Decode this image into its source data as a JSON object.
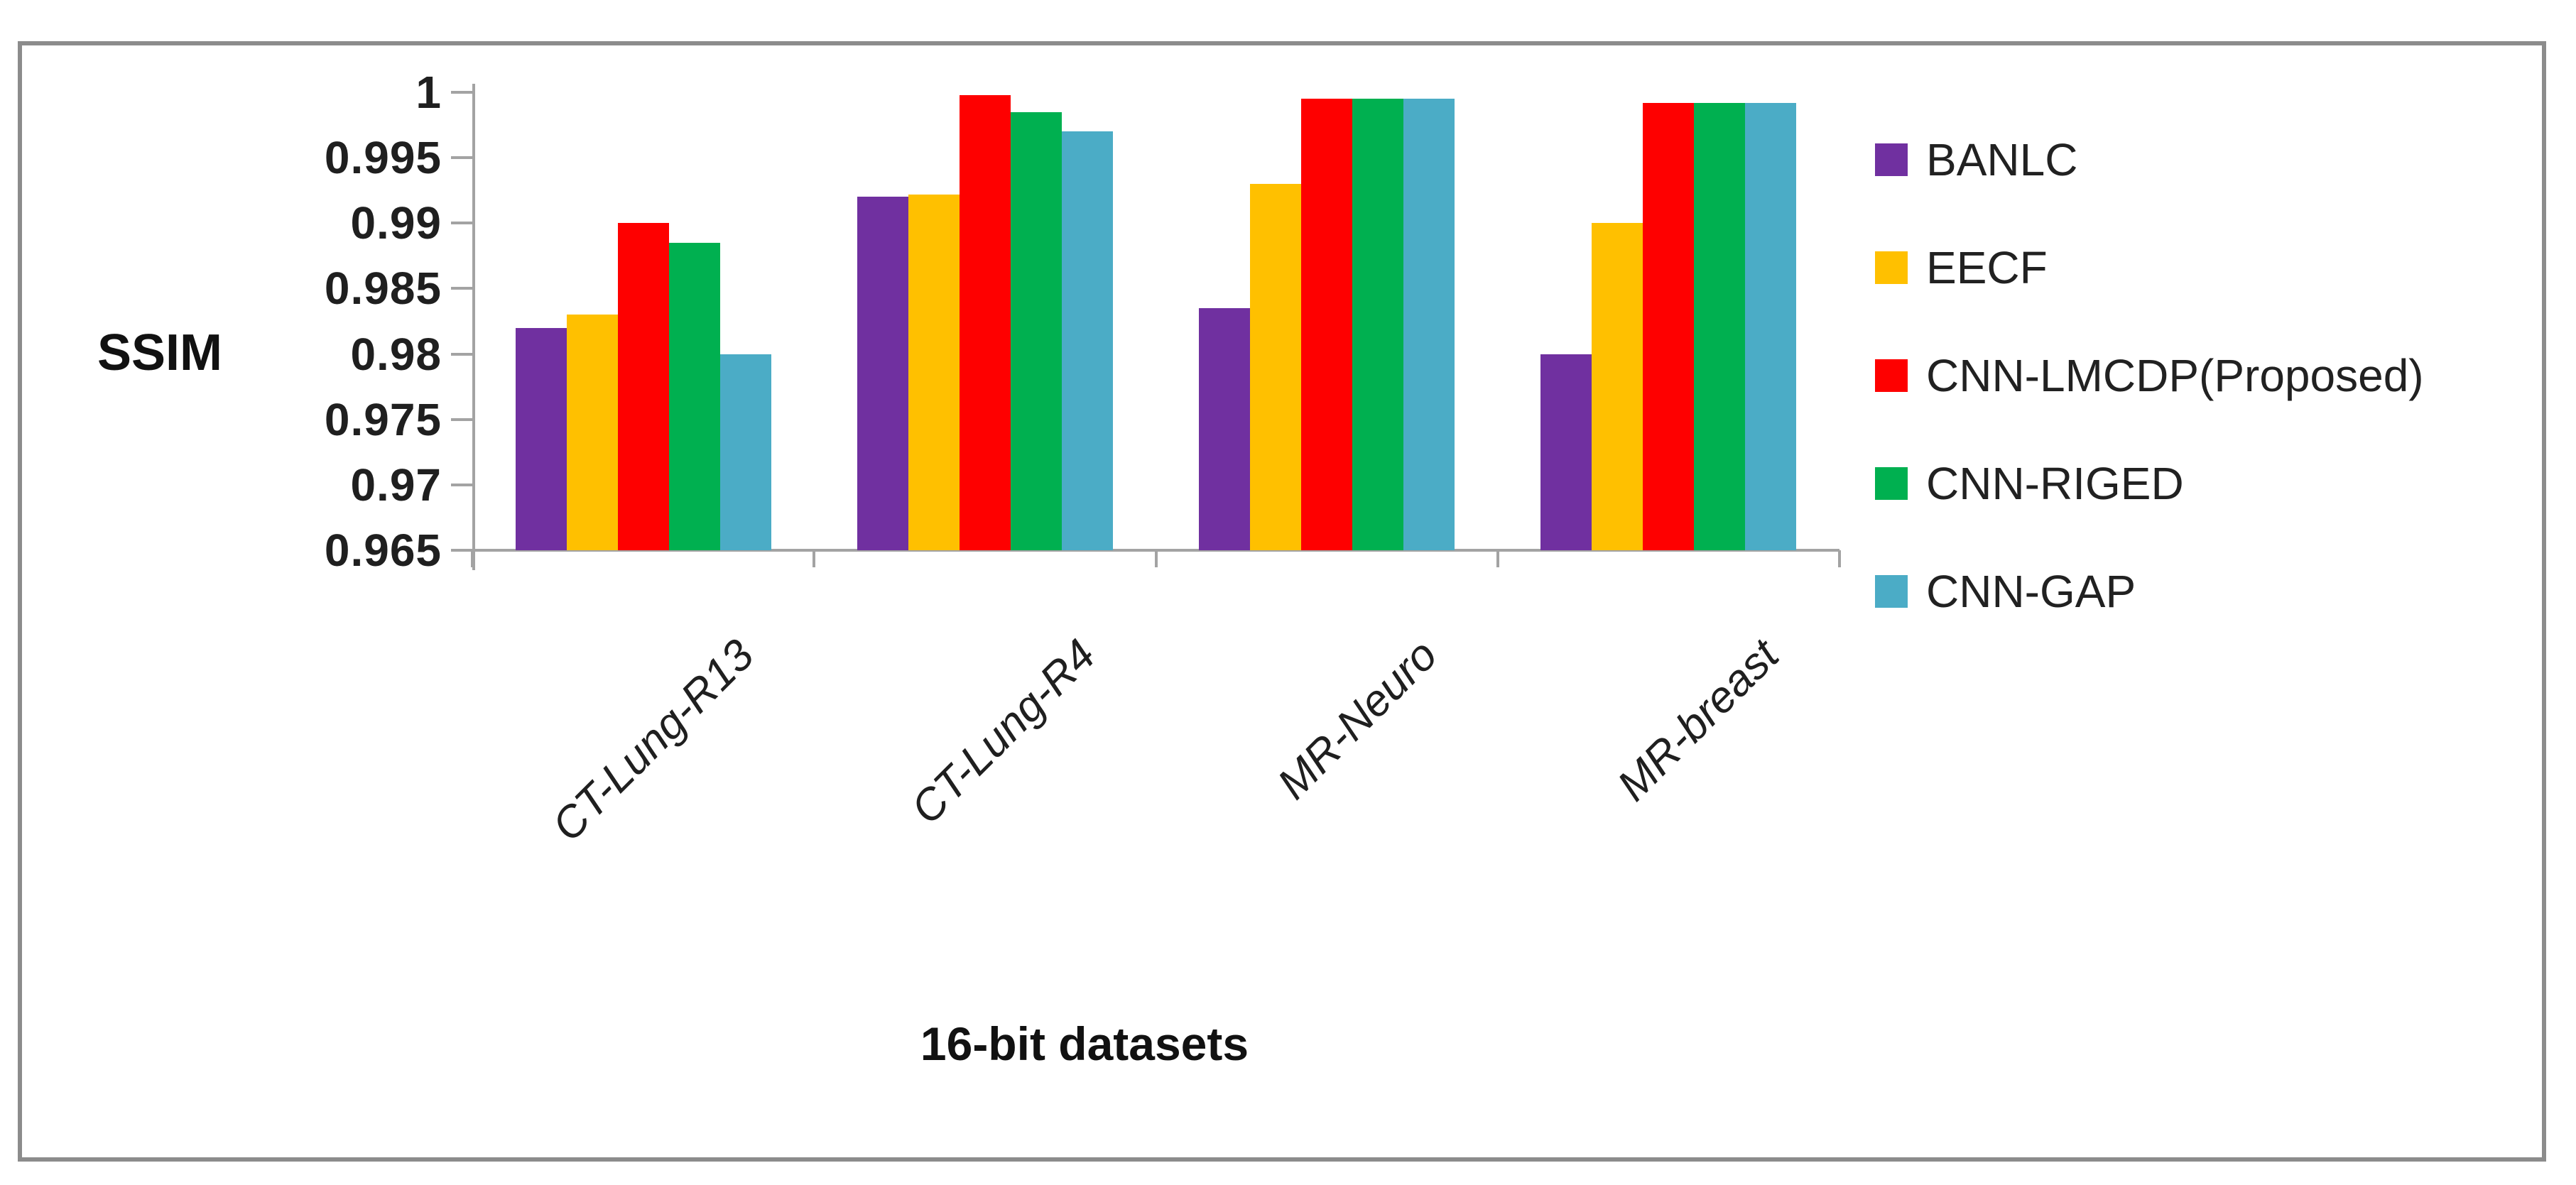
{
  "chart_data": {
    "type": "bar",
    "title": "",
    "xlabel": "16-bit datasets",
    "ylabel": "SSIM",
    "ylim": [
      0.965,
      1.0
    ],
    "ytick_step": 0.005,
    "yticks": [
      "1",
      "0.995",
      "0.99",
      "0.985",
      "0.98",
      "0.975",
      "0.97",
      "0.965"
    ],
    "categories": [
      "CT-Lung-R13",
      "CT-Lung-R4",
      "MR-Neuro",
      "MR-breast"
    ],
    "series": [
      {
        "name": "BANLC",
        "color": "#7030A0",
        "values": [
          0.982,
          0.992,
          0.9835,
          0.98
        ]
      },
      {
        "name": "EECF",
        "color": "#FFC000",
        "values": [
          0.983,
          0.9922,
          0.993,
          0.99
        ]
      },
      {
        "name": "CNN-LMCDP(Proposed)",
        "color": "#FE0000",
        "values": [
          0.99,
          0.9998,
          0.9995,
          0.9992
        ]
      },
      {
        "name": "CNN-RIGED",
        "color": "#00B050",
        "values": [
          0.9885,
          0.9985,
          0.9995,
          0.9992
        ]
      },
      {
        "name": "CNN-GAP",
        "color": "#4BACC6",
        "values": [
          0.98,
          0.997,
          0.9995,
          0.9992
        ]
      }
    ],
    "legend_position": "right",
    "grid": false,
    "axis_color": "#a3a3a3",
    "frame_color": "#8c8c8c"
  }
}
